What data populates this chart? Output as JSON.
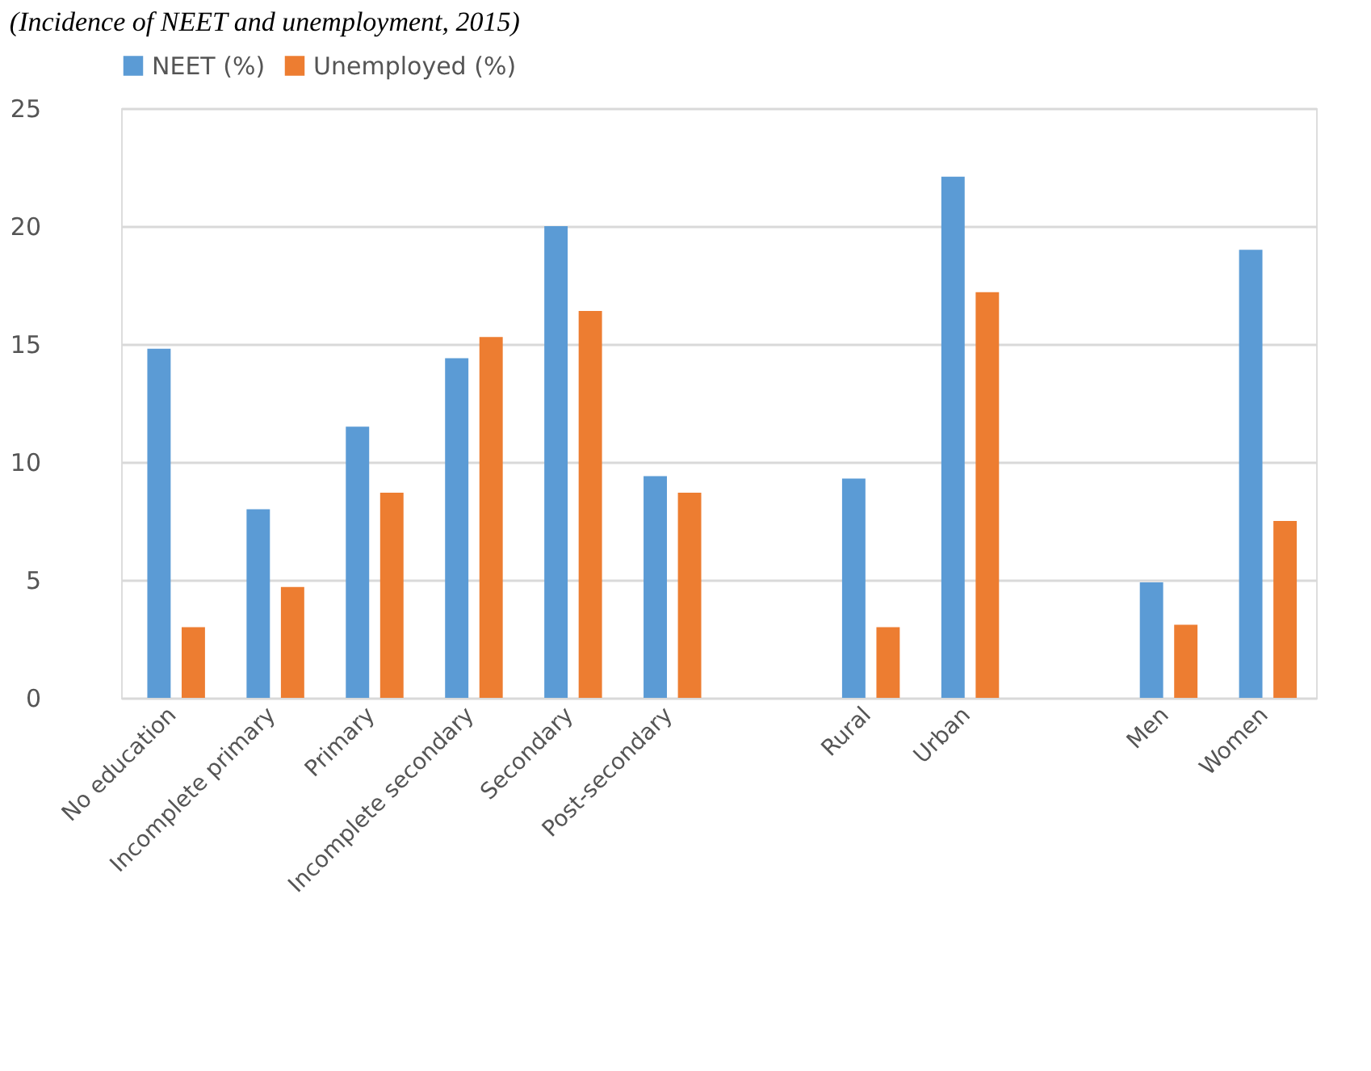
{
  "chart_data": {
    "type": "bar",
    "title": "(Incidence of NEET and unemployment, 2015)",
    "categories": [
      "No education",
      "Incomplete primary",
      "Primary",
      "Incomplete secondary",
      "Secondary",
      "Post-secondary",
      null,
      "Rural",
      "Urban",
      null,
      "Men",
      "Women"
    ],
    "series": [
      {
        "name": "NEET (%)",
        "color": "#5b9bd5",
        "values": [
          14.8,
          8.0,
          11.5,
          14.4,
          20.0,
          9.4,
          null,
          9.3,
          22.1,
          null,
          4.9,
          19.0
        ]
      },
      {
        "name": "Unemployed (%)",
        "color": "#ed7d31",
        "values": [
          3.0,
          4.7,
          8.7,
          15.3,
          16.4,
          8.7,
          null,
          3.0,
          17.2,
          null,
          3.1,
          7.5
        ]
      }
    ],
    "ylim": [
      0,
      25
    ],
    "yticks": [
      0,
      5,
      10,
      15,
      20,
      25
    ],
    "grid": "y",
    "legend": "top"
  }
}
